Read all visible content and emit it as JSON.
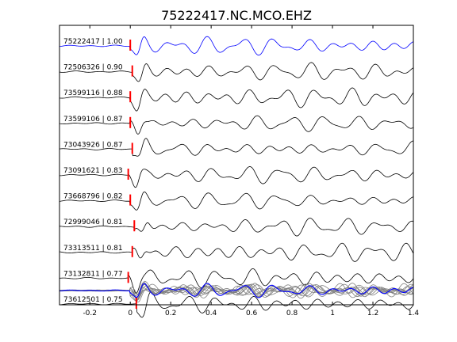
{
  "chart_data": {
    "type": "line",
    "title": "75222417.NC.MCO.EHZ",
    "xlabel": "",
    "ylabel": "",
    "xlim": [
      -0.35,
      1.4
    ],
    "x_ticks": [
      "-0.2",
      "0",
      "0.2",
      "0.4",
      "0.6",
      "0.8",
      "1",
      "1.2",
      "1.4"
    ],
    "x_tick_values": [
      -0.2,
      0,
      0.2,
      0.4,
      0.6,
      0.8,
      1.0,
      1.2,
      1.4
    ],
    "grid": false,
    "series": [
      {
        "name": "75222417 | 1.00",
        "id": "75222417",
        "cc": 1.0,
        "pick": 0.0,
        "color": "#0000ff"
      },
      {
        "name": "72506326 | 0.90",
        "id": "72506326",
        "cc": 0.9,
        "pick": 0.01,
        "color": "#000000"
      },
      {
        "name": "73599116 | 0.88",
        "id": "73599116",
        "cc": 0.88,
        "pick": 0.0,
        "color": "#000000"
      },
      {
        "name": "73599106 | 0.87",
        "id": "73599106",
        "cc": 0.87,
        "pick": 0.0,
        "color": "#000000"
      },
      {
        "name": "73043926 | 0.87",
        "id": "73043926",
        "cc": 0.87,
        "pick": 0.01,
        "color": "#000000"
      },
      {
        "name": "73091621 | 0.83",
        "id": "73091621",
        "cc": 0.83,
        "pick": -0.01,
        "color": "#000000"
      },
      {
        "name": "73668796 | 0.82",
        "id": "73668796",
        "cc": 0.82,
        "pick": 0.0,
        "color": "#000000"
      },
      {
        "name": "72999046 | 0.81",
        "id": "72999046",
        "cc": 0.81,
        "pick": 0.02,
        "color": "#000000"
      },
      {
        "name": "73313511 | 0.81",
        "id": "73313511",
        "cc": 0.81,
        "pick": 0.01,
        "color": "#000000"
      },
      {
        "name": "73132811 | 0.77",
        "id": "73132811",
        "cc": 0.77,
        "pick": -0.01,
        "color": "#000000"
      },
      {
        "name": "73612501 | 0.75",
        "id": "73612501",
        "cc": 0.75,
        "pick": 0.03,
        "color": "#000000"
      }
    ],
    "stack_trace_colors": {
      "reference": "#0000ff",
      "others": "#808080"
    },
    "pick_marker_color": "#ff0000"
  }
}
